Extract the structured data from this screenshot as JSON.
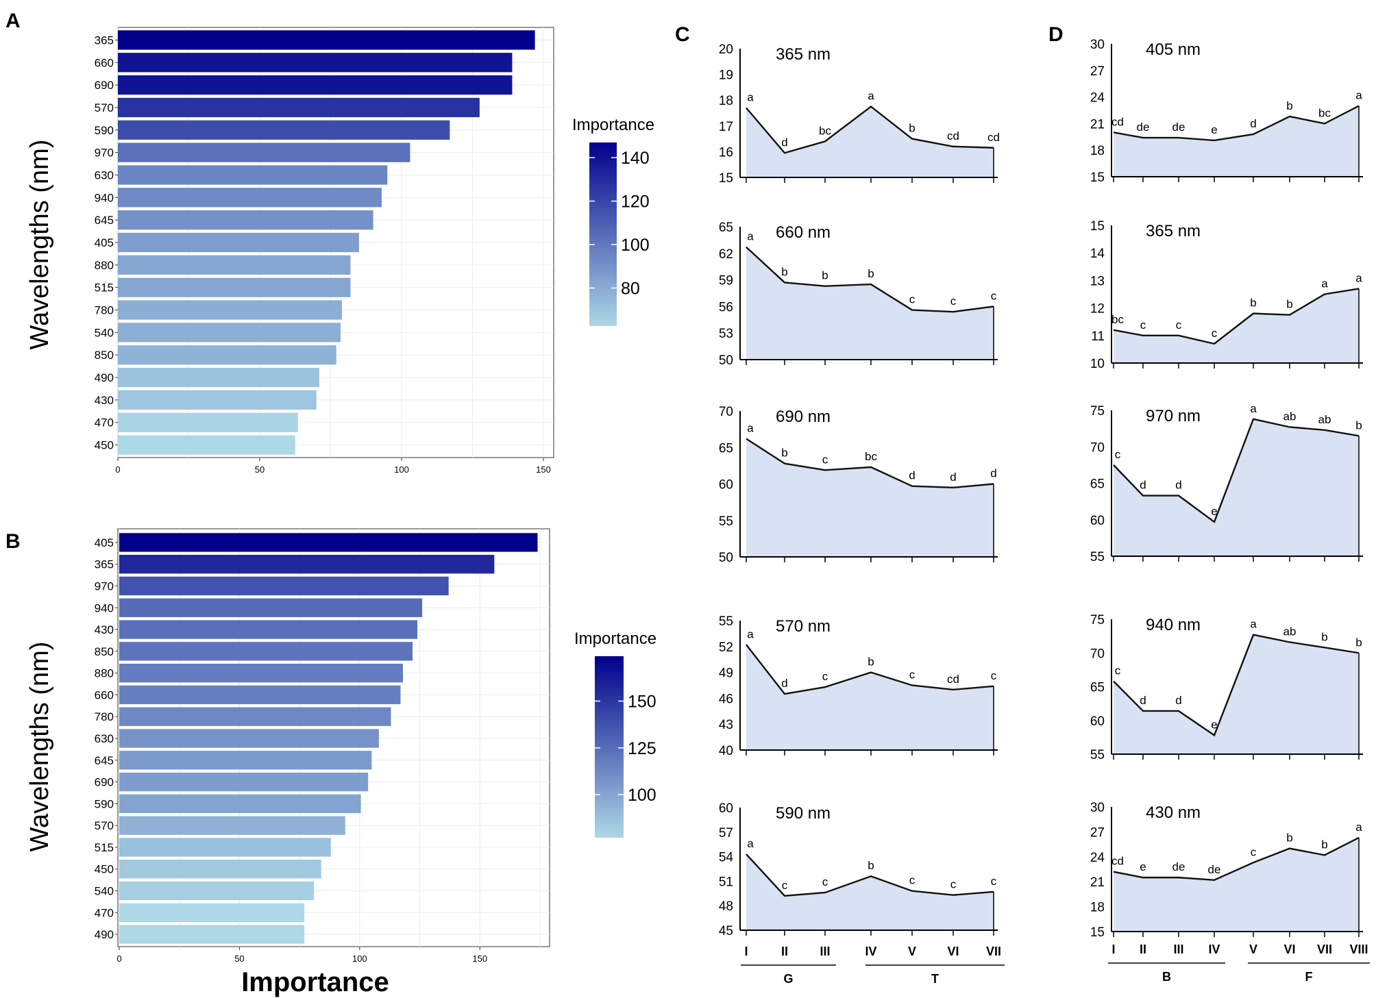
{
  "colors": {
    "bar_low": "#add8e6",
    "bar_high": "#00008b",
    "area_fill": "#d9e2f3",
    "line": "#111111",
    "grid": "#ebebeb"
  },
  "chart_data": [
    {
      "panel": "A",
      "type": "bar",
      "orientation": "horizontal",
      "categories": [
        "365",
        "660",
        "690",
        "570",
        "590",
        "970",
        "630",
        "940",
        "645",
        "405",
        "880",
        "515",
        "780",
        "540",
        "850",
        "490",
        "430",
        "470",
        "450"
      ],
      "values": [
        147,
        139,
        139,
        127.5,
        117,
        103,
        95,
        93,
        90,
        85,
        82,
        82,
        79,
        78.5,
        77,
        71,
        70,
        63.5,
        62.5
      ],
      "xlim": [
        0,
        150
      ],
      "xticks": [
        "0",
        "50",
        "100",
        "150"
      ],
      "ylabel": "Wavelengths (nm)",
      "xlabel": "",
      "legend": {
        "title": "Importance",
        "ticks": [
          "140",
          "120",
          "100",
          "80"
        ],
        "range": [
          62.5,
          147
        ],
        "tick_values": [
          140,
          120,
          100,
          80
        ]
      }
    },
    {
      "panel": "B",
      "type": "bar",
      "orientation": "horizontal",
      "categories": [
        "405",
        "365",
        "970",
        "940",
        "430",
        "850",
        "880",
        "660",
        "780",
        "630",
        "645",
        "690",
        "590",
        "570",
        "515",
        "450",
        "540",
        "470",
        "490"
      ],
      "values": [
        174,
        156,
        137,
        126,
        124,
        122,
        118,
        117,
        113,
        108,
        105,
        103.5,
        100.5,
        94,
        88,
        84,
        81,
        77,
        77
      ],
      "xlim": [
        0,
        175
      ],
      "xticks": [
        "0",
        "50",
        "100",
        "150"
      ],
      "ylabel": "Wavelengths (nm)",
      "xlabel": "Importance",
      "legend": {
        "title": "Importance",
        "ticks": [
          "150",
          "125",
          "100"
        ],
        "range": [
          77,
          174
        ],
        "tick_values": [
          150,
          125,
          100
        ]
      }
    },
    {
      "panel": "C",
      "type": "area",
      "x": [
        "I",
        "II",
        "III",
        "IV",
        "V",
        "VI",
        "VII"
      ],
      "group_labels": [
        {
          "label": "G",
          "from": 0,
          "to": 2
        },
        {
          "label": "T",
          "from": 3,
          "to": 6
        }
      ],
      "subplots": [
        {
          "title": "365 nm",
          "ylim": [
            15,
            20
          ],
          "yticks": [
            "20",
            "19",
            "18",
            "17",
            "16",
            "15"
          ],
          "values": [
            17.7,
            15.95,
            16.4,
            17.75,
            16.5,
            16.2,
            16.15
          ],
          "letters": [
            "a",
            "d",
            "bc",
            "a",
            "b",
            "cd",
            "cd"
          ]
        },
        {
          "title": "660 nm",
          "ylim": [
            50,
            65
          ],
          "yticks": [
            "65",
            "62",
            "59",
            "56",
            "53",
            "50"
          ],
          "values": [
            62.7,
            58.7,
            58.3,
            58.5,
            55.6,
            55.4,
            56
          ],
          "letters": [
            "a",
            "b",
            "b",
            "b",
            "c",
            "c",
            "c"
          ]
        },
        {
          "title": "690 nm",
          "ylim": [
            50,
            70
          ],
          "yticks": [
            "70",
            "65",
            "60",
            "55",
            "50"
          ],
          "values": [
            66.2,
            62.8,
            61.9,
            62.3,
            59.7,
            59.5,
            60
          ],
          "letters": [
            "a",
            "b",
            "c",
            "bc",
            "d",
            "d",
            "d"
          ]
        },
        {
          "title": "570 nm",
          "ylim": [
            40,
            55
          ],
          "yticks": [
            "55",
            "52",
            "49",
            "46",
            "43",
            "40"
          ],
          "values": [
            52.2,
            46.5,
            47.3,
            49,
            47.5,
            47,
            47.4
          ],
          "letters": [
            "a",
            "d",
            "c",
            "b",
            "c",
            "cd",
            "c"
          ]
        },
        {
          "title": "590 nm",
          "ylim": [
            45,
            60
          ],
          "yticks": [
            "60",
            "57",
            "54",
            "51",
            "48",
            "45"
          ],
          "values": [
            54.3,
            49.2,
            49.6,
            51.6,
            49.8,
            49.3,
            49.7
          ],
          "letters": [
            "a",
            "c",
            "c",
            "b",
            "c",
            "c",
            "c"
          ]
        }
      ]
    },
    {
      "panel": "D",
      "type": "area",
      "x": [
        "I",
        "II",
        "III",
        "IV",
        "V",
        "VI",
        "VII",
        "VIII"
      ],
      "group_labels": [
        {
          "label": "B",
          "from": 0,
          "to": 3
        },
        {
          "label": "F",
          "from": 4,
          "to": 7
        }
      ],
      "subplots": [
        {
          "title": "405 nm",
          "ylim": [
            15,
            30
          ],
          "yticks": [
            "30",
            "27",
            "24",
            "21",
            "18",
            "15"
          ],
          "values": [
            20,
            19.4,
            19.4,
            19.1,
            19.8,
            21.8,
            21,
            23
          ],
          "letters": [
            "cd",
            "de",
            "de",
            "e",
            "d",
            "b",
            "bc",
            "a"
          ]
        },
        {
          "title": "365 nm",
          "ylim": [
            10,
            15
          ],
          "yticks": [
            "15",
            "14",
            "13",
            "12",
            "11",
            "10"
          ],
          "values": [
            11.2,
            11,
            11,
            10.7,
            11.8,
            11.75,
            12.5,
            12.7
          ],
          "letters": [
            "bc",
            "c",
            "c",
            "c",
            "b",
            "b",
            "a",
            "a"
          ]
        },
        {
          "title": "970 nm",
          "ylim": [
            55,
            75
          ],
          "yticks": [
            "75",
            "70",
            "65",
            "60",
            "55"
          ],
          "values": [
            67.5,
            63.3,
            63.3,
            59.7,
            73.8,
            72.7,
            72.3,
            71.5
          ],
          "letters": [
            "c",
            "d",
            "d",
            "e",
            "a",
            "ab",
            "ab",
            "b"
          ]
        },
        {
          "title": "940 nm",
          "ylim": [
            55,
            75
          ],
          "yticks": [
            "75",
            "70",
            "65",
            "60",
            "55"
          ],
          "values": [
            65.8,
            61.4,
            61.4,
            57.8,
            72.7,
            71.6,
            70.8,
            70
          ],
          "letters": [
            "c",
            "d",
            "d",
            "e",
            "a",
            "ab",
            "b",
            "b"
          ]
        },
        {
          "title": "430 nm",
          "ylim": [
            15,
            30
          ],
          "yticks": [
            "30",
            "27",
            "24",
            "21",
            "18",
            "15"
          ],
          "values": [
            22.2,
            21.5,
            21.5,
            21.2,
            23.3,
            25,
            24.2,
            26.3
          ],
          "letters": [
            "cd",
            "e",
            "de",
            "de",
            "c",
            "b",
            "b",
            "a"
          ]
        }
      ]
    }
  ],
  "panel_labels": {
    "A": "A",
    "B": "B",
    "C": "C",
    "D": "D"
  }
}
